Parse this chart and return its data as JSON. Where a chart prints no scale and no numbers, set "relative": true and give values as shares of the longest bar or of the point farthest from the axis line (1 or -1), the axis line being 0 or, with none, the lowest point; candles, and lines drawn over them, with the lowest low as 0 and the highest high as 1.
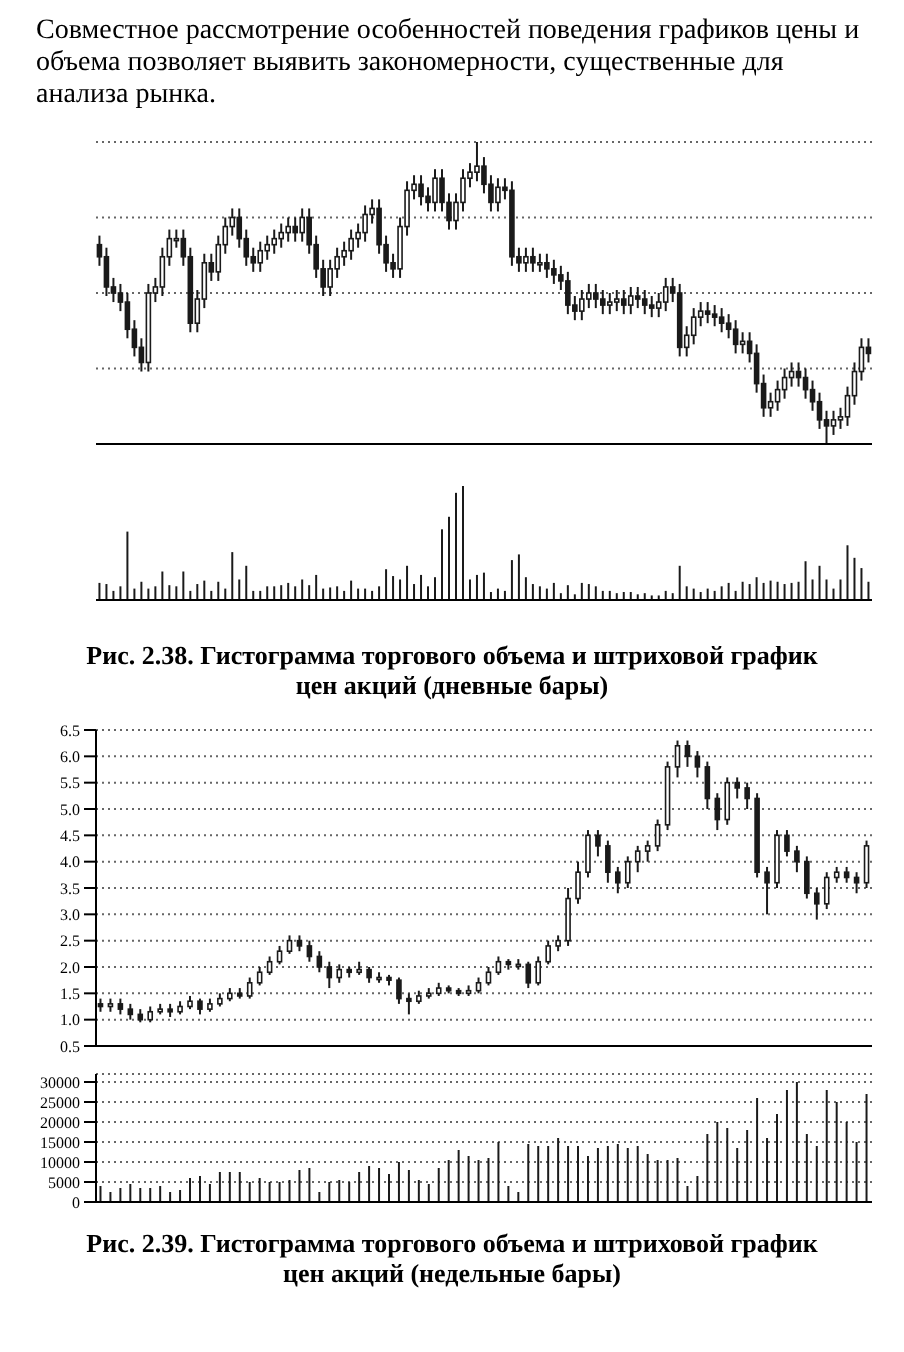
{
  "chart_data": [
    {
      "type": "candlestick",
      "relative": true,
      "color": "#1a1a1a",
      "grid": "y",
      "annotations": [
        "Совместное рассмотрение особенностей поведения графиков цены и объема позволяет выявить закономерности, существенные для анализа рынка."
      ],
      "categories": [
        null,
        null,
        null,
        null,
        null,
        null,
        null,
        null,
        null,
        null,
        null,
        null,
        null,
        null,
        null,
        null,
        null,
        null,
        null,
        null,
        null,
        null,
        null,
        null,
        null,
        null,
        null,
        null,
        null,
        null,
        null,
        null,
        null,
        null,
        null,
        null,
        null,
        null,
        null,
        null,
        null,
        null,
        null,
        null,
        null,
        null,
        null,
        null,
        null,
        null,
        null,
        null,
        null,
        null,
        null,
        null,
        null,
        null,
        null,
        null,
        null,
        null,
        null,
        null,
        null,
        null,
        null,
        null,
        null,
        null,
        null,
        null,
        null,
        null,
        null,
        null,
        null,
        null,
        null,
        null,
        null,
        null,
        null,
        null,
        null,
        null,
        null,
        null,
        null,
        null,
        null,
        null,
        null,
        null,
        null,
        null,
        null,
        null,
        null,
        null,
        null,
        null,
        null,
        null,
        null,
        null,
        null,
        null,
        null,
        null,
        null
      ],
      "ohlc": [
        [
          0.66,
          0.69,
          0.59,
          0.62
        ],
        [
          0.62,
          0.65,
          0.49,
          0.52
        ],
        [
          0.52,
          0.55,
          0.47,
          0.5
        ],
        [
          0.5,
          0.53,
          0.44,
          0.47
        ],
        [
          0.47,
          0.5,
          0.35,
          0.38
        ],
        [
          0.38,
          0.41,
          0.29,
          0.32
        ],
        [
          0.32,
          0.35,
          0.24,
          0.27
        ],
        [
          0.27,
          0.53,
          0.24,
          0.5
        ],
        [
          0.5,
          0.55,
          0.47,
          0.52
        ],
        [
          0.52,
          0.65,
          0.49,
          0.62
        ],
        [
          0.62,
          0.71,
          0.59,
          0.68
        ],
        [
          0.68,
          0.71,
          0.65,
          0.68
        ],
        [
          0.68,
          0.71,
          0.59,
          0.62
        ],
        [
          0.62,
          0.65,
          0.37,
          0.4
        ],
        [
          0.4,
          0.51,
          0.37,
          0.48
        ],
        [
          0.48,
          0.63,
          0.45,
          0.6
        ],
        [
          0.6,
          0.63,
          0.54,
          0.57
        ],
        [
          0.57,
          0.69,
          0.54,
          0.66
        ],
        [
          0.66,
          0.75,
          0.63,
          0.72
        ],
        [
          0.72,
          0.78,
          0.69,
          0.75
        ],
        [
          0.75,
          0.78,
          0.65,
          0.68
        ],
        [
          0.68,
          0.71,
          0.59,
          0.62
        ],
        [
          0.62,
          0.65,
          0.57,
          0.6
        ],
        [
          0.6,
          0.67,
          0.57,
          0.64
        ],
        [
          0.64,
          0.69,
          0.61,
          0.66
        ],
        [
          0.66,
          0.71,
          0.63,
          0.68
        ],
        [
          0.68,
          0.73,
          0.65,
          0.7
        ],
        [
          0.7,
          0.75,
          0.67,
          0.72
        ],
        [
          0.72,
          0.75,
          0.67,
          0.7
        ],
        [
          0.7,
          0.78,
          0.67,
          0.75
        ],
        [
          0.75,
          0.78,
          0.63,
          0.66
        ],
        [
          0.66,
          0.69,
          0.55,
          0.58
        ],
        [
          0.58,
          0.61,
          0.49,
          0.52
        ],
        [
          0.52,
          0.61,
          0.49,
          0.58
        ],
        [
          0.58,
          0.65,
          0.55,
          0.62
        ],
        [
          0.62,
          0.67,
          0.59,
          0.64
        ],
        [
          0.64,
          0.71,
          0.61,
          0.68
        ],
        [
          0.68,
          0.73,
          0.65,
          0.7
        ],
        [
          0.7,
          0.79,
          0.67,
          0.76
        ],
        [
          0.76,
          0.81,
          0.73,
          0.78
        ],
        [
          0.78,
          0.81,
          0.63,
          0.66
        ],
        [
          0.66,
          0.69,
          0.57,
          0.6
        ],
        [
          0.6,
          0.63,
          0.55,
          0.58
        ],
        [
          0.58,
          0.75,
          0.55,
          0.72
        ],
        [
          0.72,
          0.87,
          0.69,
          0.84
        ],
        [
          0.84,
          0.89,
          0.81,
          0.86
        ],
        [
          0.86,
          0.89,
          0.79,
          0.82
        ],
        [
          0.82,
          0.85,
          0.77,
          0.8
        ],
        [
          0.8,
          0.91,
          0.77,
          0.88
        ],
        [
          0.88,
          0.91,
          0.77,
          0.8
        ],
        [
          0.8,
          0.83,
          0.71,
          0.74
        ],
        [
          0.74,
          0.83,
          0.71,
          0.8
        ],
        [
          0.8,
          0.91,
          0.77,
          0.88
        ],
        [
          0.88,
          0.93,
          0.85,
          0.9
        ],
        [
          0.9,
          1,
          0.87,
          0.92
        ],
        [
          0.92,
          0.95,
          0.83,
          0.86
        ],
        [
          0.86,
          0.89,
          0.77,
          0.8
        ],
        [
          0.8,
          0.88,
          0.77,
          0.85
        ],
        [
          0.85,
          0.88,
          0.81,
          0.84
        ],
        [
          0.84,
          0.87,
          0.59,
          0.62
        ],
        [
          0.62,
          0.65,
          0.57,
          0.6
        ],
        [
          0.6,
          0.65,
          0.57,
          0.62
        ],
        [
          0.62,
          0.65,
          0.57,
          0.6
        ],
        [
          0.6,
          0.63,
          0.57,
          0.6
        ],
        [
          0.6,
          0.63,
          0.55,
          0.58
        ],
        [
          0.58,
          0.61,
          0.53,
          0.56
        ],
        [
          0.56,
          0.59,
          0.51,
          0.54
        ],
        [
          0.54,
          0.57,
          0.43,
          0.46
        ],
        [
          0.46,
          0.49,
          0.41,
          0.44
        ],
        [
          0.44,
          0.51,
          0.41,
          0.48
        ],
        [
          0.48,
          0.53,
          0.45,
          0.5
        ],
        [
          0.5,
          0.53,
          0.45,
          0.48
        ],
        [
          0.48,
          0.51,
          0.43,
          0.46
        ],
        [
          0.46,
          0.5,
          0.43,
          0.47
        ],
        [
          0.47,
          0.51,
          0.44,
          0.48
        ],
        [
          0.48,
          0.51,
          0.43,
          0.46
        ],
        [
          0.46,
          0.52,
          0.43,
          0.49
        ],
        [
          0.49,
          0.52,
          0.45,
          0.48
        ],
        [
          0.48,
          0.51,
          0.43,
          0.46
        ],
        [
          0.46,
          0.49,
          0.42,
          0.45
        ],
        [
          0.45,
          0.5,
          0.42,
          0.47
        ],
        [
          0.47,
          0.55,
          0.44,
          0.52
        ],
        [
          0.52,
          0.55,
          0.47,
          0.5
        ],
        [
          0.5,
          0.53,
          0.29,
          0.32
        ],
        [
          0.32,
          0.39,
          0.29,
          0.36
        ],
        [
          0.36,
          0.45,
          0.33,
          0.42
        ],
        [
          0.42,
          0.47,
          0.39,
          0.44
        ],
        [
          0.44,
          0.47,
          0.4,
          0.43
        ],
        [
          0.43,
          0.46,
          0.39,
          0.42
        ],
        [
          0.42,
          0.45,
          0.37,
          0.4
        ],
        [
          0.4,
          0.43,
          0.35,
          0.38
        ],
        [
          0.38,
          0.41,
          0.3,
          0.33
        ],
        [
          0.33,
          0.37,
          0.3,
          0.34
        ],
        [
          0.34,
          0.37,
          0.27,
          0.3
        ],
        [
          0.3,
          0.33,
          0.17,
          0.2
        ],
        [
          0.2,
          0.23,
          0.09,
          0.12
        ],
        [
          0.12,
          0.17,
          0.09,
          0.14
        ],
        [
          0.14,
          0.21,
          0.11,
          0.18
        ],
        [
          0.18,
          0.25,
          0.15,
          0.22
        ],
        [
          0.22,
          0.27,
          0.19,
          0.24
        ],
        [
          0.24,
          0.27,
          0.19,
          0.22
        ],
        [
          0.22,
          0.25,
          0.15,
          0.18
        ],
        [
          0.18,
          0.21,
          0.11,
          0.14
        ],
        [
          0.14,
          0.17,
          0.05,
          0.08
        ],
        [
          0.08,
          0.11,
          0,
          0.06
        ],
        [
          0.06,
          0.11,
          0.03,
          0.08
        ],
        [
          0.08,
          0.12,
          0.05,
          0.09
        ],
        [
          0.09,
          0.19,
          0.06,
          0.16
        ],
        [
          0.16,
          0.27,
          0.13,
          0.24
        ],
        [
          0.24,
          0.35,
          0.21,
          0.32
        ],
        [
          0.32,
          0.35,
          0.27,
          0.3
        ]
      ]
    },
    {
      "type": "bar",
      "relative": true,
      "color": "#1a1a1a",
      "title": "Рис. 2.38. Гистограмма торгового объема и штриховой график цен акций (дневные бары)",
      "categories": [
        null,
        null,
        null,
        null,
        null,
        null,
        null,
        null,
        null,
        null,
        null,
        null,
        null,
        null,
        null,
        null,
        null,
        null,
        null,
        null,
        null,
        null,
        null,
        null,
        null,
        null,
        null,
        null,
        null,
        null,
        null,
        null,
        null,
        null,
        null,
        null,
        null,
        null,
        null,
        null,
        null,
        null,
        null,
        null,
        null,
        null,
        null,
        null,
        null,
        null,
        null,
        null,
        null,
        null,
        null,
        null,
        null,
        null,
        null,
        null,
        null,
        null,
        null,
        null,
        null,
        null,
        null,
        null,
        null,
        null,
        null,
        null,
        null,
        null,
        null,
        null,
        null,
        null,
        null,
        null,
        null,
        null,
        null,
        null,
        null,
        null,
        null,
        null,
        null,
        null,
        null,
        null,
        null,
        null,
        null,
        null,
        null,
        null,
        null,
        null,
        null,
        null,
        null,
        null,
        null,
        null,
        null,
        null,
        null,
        null,
        null
      ],
      "values": [
        0.15,
        0.14,
        0.08,
        0.12,
        0.6,
        0.1,
        0.16,
        0.1,
        0.12,
        0.25,
        0.13,
        0.12,
        0.25,
        0.08,
        0.14,
        0.17,
        0.08,
        0.16,
        0.1,
        0.42,
        0.18,
        0.3,
        0.08,
        0.08,
        0.12,
        0.12,
        0.13,
        0.15,
        0.12,
        0.18,
        0.13,
        0.22,
        0.1,
        0.11,
        0.12,
        0.08,
        0.17,
        0.1,
        0.1,
        0.08,
        0.12,
        0.27,
        0.21,
        0.18,
        0.3,
        0.14,
        0.22,
        0.12,
        0.2,
        0.62,
        0.73,
        0.94,
        1,
        0.18,
        0.22,
        0.24,
        0.07,
        0.1,
        0.08,
        0.35,
        0.4,
        0.2,
        0.14,
        0.12,
        0.1,
        0.15,
        0.06,
        0.13,
        0.05,
        0.15,
        0.14,
        0.12,
        0.08,
        0.08,
        0.06,
        0.07,
        0.07,
        0.05,
        0.06,
        0.04,
        0.04,
        0.08,
        0.06,
        0.3,
        0.12,
        0.1,
        0.07,
        0.1,
        0.08,
        0.12,
        0.15,
        0.08,
        0.16,
        0.14,
        0.2,
        0.15,
        0.17,
        0.16,
        0.14,
        0.15,
        0.16,
        0.34,
        0.18,
        0.3,
        0.18,
        0.1,
        0.18,
        0.48,
        0.37,
        0.28,
        0.16
      ]
    },
    {
      "type": "candlestick",
      "color": "#1a1a1a",
      "grid": "y",
      "tick_labels": "y",
      "ylim": [
        0.5,
        6.5
      ],
      "yticks": [
        0.5,
        {
          "value": 1,
          "label": "1.0"
        },
        1.5,
        {
          "value": 2,
          "label": "2.0"
        },
        2.5,
        {
          "value": 3,
          "label": "3.0"
        },
        3.5,
        {
          "value": 4,
          "label": "4.0"
        },
        4.5,
        {
          "value": 5,
          "label": "5.0"
        },
        5.5,
        {
          "value": 6,
          "label": "6.0"
        },
        6.5
      ],
      "categories": [
        null,
        null,
        null,
        null,
        null,
        null,
        null,
        null,
        null,
        null,
        null,
        null,
        null,
        null,
        null,
        null,
        null,
        null,
        null,
        null,
        null,
        null,
        null,
        null,
        null,
        null,
        null,
        null,
        null,
        null,
        null,
        null,
        null,
        null,
        null,
        null,
        null,
        null,
        null,
        null,
        null,
        null,
        null,
        null,
        null,
        null,
        null,
        null,
        null,
        null,
        null,
        null,
        null,
        null,
        null,
        null,
        null,
        null,
        null,
        null,
        null,
        null,
        null,
        null,
        null,
        null,
        null,
        null,
        null,
        null,
        null,
        null,
        null,
        null,
        null,
        null,
        null,
        null
      ],
      "ohlc": [
        [
          1.3,
          1.4,
          1.15,
          1.25
        ],
        [
          1.25,
          1.4,
          1.15,
          1.3
        ],
        [
          1.3,
          1.4,
          1.1,
          1.2
        ],
        [
          1.2,
          1.3,
          1.0,
          1.1
        ],
        [
          1.1,
          1.2,
          0.95,
          1.0
        ],
        [
          1.0,
          1.25,
          0.95,
          1.15
        ],
        [
          1.15,
          1.3,
          1.1,
          1.2
        ],
        [
          1.2,
          1.3,
          1.05,
          1.15
        ],
        [
          1.15,
          1.35,
          1.1,
          1.25
        ],
        [
          1.25,
          1.45,
          1.2,
          1.35
        ],
        [
          1.35,
          1.4,
          1.1,
          1.2
        ],
        [
          1.2,
          1.4,
          1.15,
          1.3
        ],
        [
          1.3,
          1.5,
          1.25,
          1.4
        ],
        [
          1.4,
          1.6,
          1.35,
          1.5
        ],
        [
          1.5,
          1.6,
          1.4,
          1.45
        ],
        [
          1.45,
          1.8,
          1.4,
          1.7
        ],
        [
          1.7,
          2.0,
          1.65,
          1.9
        ],
        [
          1.9,
          2.2,
          1.85,
          2.1
        ],
        [
          2.1,
          2.4,
          2.05,
          2.3
        ],
        [
          2.3,
          2.6,
          2.25,
          2.5
        ],
        [
          2.5,
          2.6,
          2.3,
          2.4
        ],
        [
          2.4,
          2.5,
          2.1,
          2.2
        ],
        [
          2.2,
          2.3,
          1.9,
          2.0
        ],
        [
          2.0,
          2.1,
          1.6,
          1.8
        ],
        [
          1.8,
          2.05,
          1.7,
          1.95
        ],
        [
          1.95,
          2.0,
          1.8,
          1.9
        ],
        [
          1.9,
          2.1,
          1.85,
          1.95
        ],
        [
          1.95,
          2.0,
          1.7,
          1.8
        ],
        [
          1.8,
          1.9,
          1.7,
          1.8
        ],
        [
          1.8,
          1.85,
          1.65,
          1.75
        ],
        [
          1.75,
          1.8,
          1.3,
          1.4
        ],
        [
          1.4,
          1.5,
          1.1,
          1.35
        ],
        [
          1.35,
          1.55,
          1.3,
          1.45
        ],
        [
          1.45,
          1.6,
          1.4,
          1.5
        ],
        [
          1.5,
          1.7,
          1.45,
          1.6
        ],
        [
          1.6,
          1.65,
          1.5,
          1.55
        ],
        [
          1.55,
          1.6,
          1.45,
          1.5
        ],
        [
          1.5,
          1.65,
          1.45,
          1.55
        ],
        [
          1.55,
          1.8,
          1.5,
          1.7
        ],
        [
          1.7,
          2.0,
          1.65,
          1.9
        ],
        [
          1.9,
          2.2,
          1.85,
          2.1
        ],
        [
          2.1,
          2.15,
          1.95,
          2.05
        ],
        [
          2.05,
          2.15,
          1.95,
          2.05
        ],
        [
          2.05,
          2.1,
          1.6,
          1.7
        ],
        [
          1.7,
          2.2,
          1.65,
          2.1
        ],
        [
          2.1,
          2.5,
          2.05,
          2.4
        ],
        [
          2.4,
          2.6,
          2.3,
          2.5
        ],
        [
          2.5,
          3.5,
          2.4,
          3.3
        ],
        [
          3.3,
          4.0,
          3.2,
          3.8
        ],
        [
          3.8,
          4.6,
          3.7,
          4.5
        ],
        [
          4.5,
          4.6,
          4.1,
          4.3
        ],
        [
          4.3,
          4.4,
          3.6,
          3.8
        ],
        [
          3.8,
          3.9,
          3.4,
          3.6
        ],
        [
          3.6,
          4.1,
          3.5,
          4.0
        ],
        [
          4.0,
          4.3,
          3.8,
          4.2
        ],
        [
          4.2,
          4.4,
          4.0,
          4.3
        ],
        [
          4.3,
          4.8,
          4.2,
          4.7
        ],
        [
          4.7,
          5.9,
          4.6,
          5.8
        ],
        [
          5.8,
          6.3,
          5.6,
          6.2
        ],
        [
          6.2,
          6.3,
          5.8,
          6.0
        ],
        [
          6.0,
          6.1,
          5.6,
          5.8
        ],
        [
          5.8,
          5.9,
          5.0,
          5.2
        ],
        [
          5.2,
          5.3,
          4.6,
          4.8
        ],
        [
          4.8,
          5.6,
          4.7,
          5.5
        ],
        [
          5.5,
          5.6,
          5.2,
          5.4
        ],
        [
          5.4,
          5.5,
          5.0,
          5.2
        ],
        [
          5.2,
          5.3,
          3.7,
          3.8
        ],
        [
          3.8,
          3.9,
          3.0,
          3.6
        ],
        [
          3.6,
          4.6,
          3.5,
          4.5
        ],
        [
          4.5,
          4.6,
          4.1,
          4.2
        ],
        [
          4.2,
          4.3,
          3.8,
          4.0
        ],
        [
          4.0,
          4.1,
          3.3,
          3.4
        ],
        [
          3.4,
          3.5,
          2.9,
          3.2
        ],
        [
          3.2,
          3.8,
          3.1,
          3.7
        ],
        [
          3.7,
          3.9,
          3.6,
          3.8
        ],
        [
          3.8,
          3.9,
          3.6,
          3.7
        ],
        [
          3.7,
          3.8,
          3.4,
          3.6
        ],
        [
          3.6,
          4.4,
          3.5,
          4.3
        ]
      ]
    },
    {
      "type": "bar",
      "color": "#1a1a1a",
      "grid": "y",
      "tick_labels": "y",
      "ylim": [
        0,
        32000
      ],
      "yticks": [
        0,
        5000,
        10000,
        15000,
        20000,
        25000,
        30000
      ],
      "title": "Рис. 2.39. Гистограмма торгового объема и штриховой график цен акций (недельные бары)",
      "categories": [
        null,
        null,
        null,
        null,
        null,
        null,
        null,
        null,
        null,
        null,
        null,
        null,
        null,
        null,
        null,
        null,
        null,
        null,
        null,
        null,
        null,
        null,
        null,
        null,
        null,
        null,
        null,
        null,
        null,
        null,
        null,
        null,
        null,
        null,
        null,
        null,
        null,
        null,
        null,
        null,
        null,
        null,
        null,
        null,
        null,
        null,
        null,
        null,
        null,
        null,
        null,
        null,
        null,
        null,
        null,
        null,
        null,
        null,
        null,
        null,
        null,
        null,
        null,
        null,
        null,
        null,
        null,
        null,
        null,
        null,
        null,
        null,
        null,
        null,
        null,
        null,
        null,
        null
      ],
      "values": [
        4000,
        2500,
        3500,
        4500,
        3500,
        3500,
        4000,
        2500,
        3000,
        6000,
        6500,
        4500,
        7500,
        7500,
        7500,
        5000,
        6000,
        5000,
        5000,
        5500,
        8000,
        8500,
        2500,
        5000,
        5500,
        5000,
        7500,
        9000,
        8500,
        7000,
        10000,
        8000,
        5500,
        4500,
        8500,
        10500,
        13000,
        11500,
        10500,
        11000,
        15000,
        4000,
        2500,
        14500,
        14000,
        14000,
        16000,
        14000,
        14000,
        11500,
        13500,
        14000,
        14500,
        13500,
        14000,
        12000,
        10500,
        10500,
        11000,
        4000,
        6500,
        17000,
        20000,
        18500,
        13500,
        18000,
        26000,
        16000,
        22000,
        28000,
        30000,
        17000,
        14000,
        28000,
        25000,
        20000,
        15000,
        27000
      ]
    }
  ]
}
